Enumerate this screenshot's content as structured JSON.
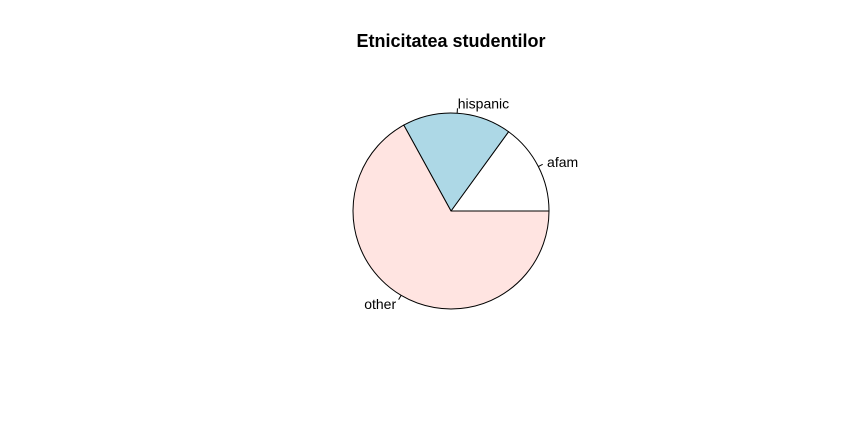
{
  "chart_data": {
    "type": "pie",
    "title": "Etnicitatea studentilor",
    "categories": [
      "afam",
      "hispanic",
      "other"
    ],
    "values": [
      0.15,
      0.18,
      0.67
    ],
    "colors": [
      "#ffffff",
      "#add8e6",
      "#ffe4e1"
    ],
    "start_angle_deg": 0,
    "direction": "counterclockwise"
  }
}
